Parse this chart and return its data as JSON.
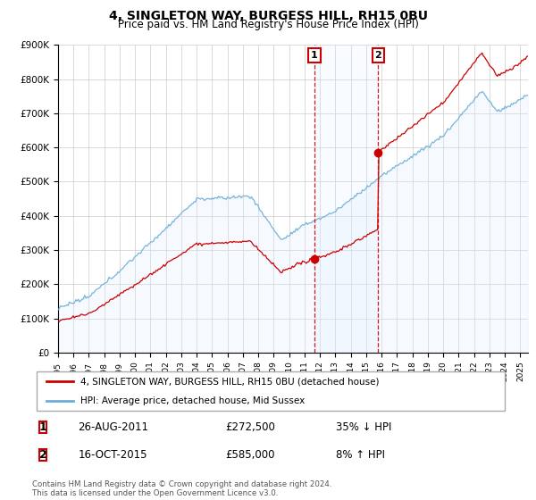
{
  "title": "4, SINGLETON WAY, BURGESS HILL, RH15 0BU",
  "subtitle": "Price paid vs. HM Land Registry's House Price Index (HPI)",
  "hpi_color": "#6baed6",
  "hpi_fill_color": "#ddeeff",
  "price_color": "#cc0000",
  "ylim": [
    0,
    900000
  ],
  "yticks": [
    0,
    100000,
    200000,
    300000,
    400000,
    500000,
    600000,
    700000,
    800000,
    900000
  ],
  "ytick_labels": [
    "£0",
    "£100K",
    "£200K",
    "£300K",
    "£400K",
    "£500K",
    "£600K",
    "£700K",
    "£800K",
    "£900K"
  ],
  "xlim_start": 1995.0,
  "xlim_end": 2025.5,
  "transaction1_date": 2011.65,
  "transaction1_price": 272500,
  "transaction2_date": 2015.79,
  "transaction2_price": 585000,
  "legend_line1": "4, SINGLETON WAY, BURGESS HILL, RH15 0BU (detached house)",
  "legend_line2": "HPI: Average price, detached house, Mid Sussex",
  "table_row1_date": "26-AUG-2011",
  "table_row1_price": "£272,500",
  "table_row1_hpi": "35% ↓ HPI",
  "table_row2_date": "16-OCT-2015",
  "table_row2_price": "£585,000",
  "table_row2_hpi": "8% ↑ HPI",
  "footer": "Contains HM Land Registry data © Crown copyright and database right 2024.\nThis data is licensed under the Open Government Licence v3.0.",
  "background_color": "#ffffff",
  "grid_color": "#cccccc"
}
